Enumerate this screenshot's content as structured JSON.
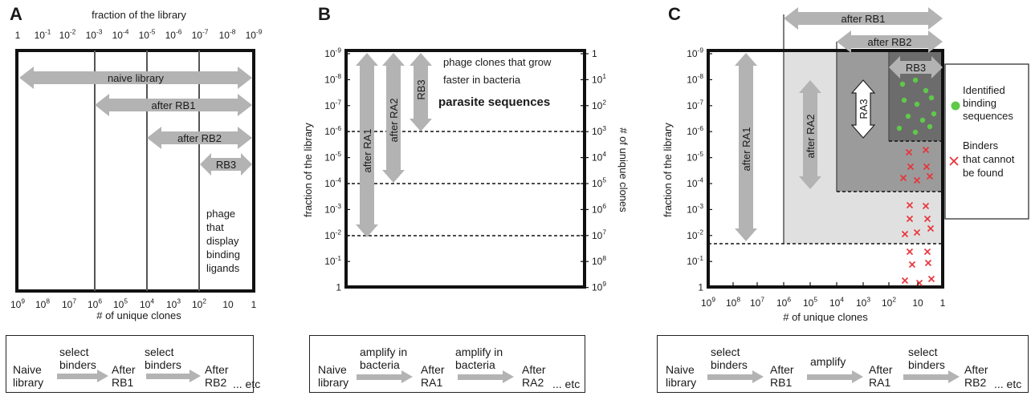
{
  "panel_a": {
    "letter": "A",
    "top_axis_label": "fraction of the library",
    "top_ticks": [
      "1",
      "10",
      "10",
      "10",
      "10",
      "10",
      "10",
      "10",
      "10",
      "10"
    ],
    "top_tick_exps": [
      "",
      "-1",
      "-2",
      "-3",
      "-4",
      "-5",
      "-6",
      "-7",
      "-8",
      "-9"
    ],
    "bottom_axis_label": "# of unique clones",
    "bottom_ticks": [
      "10",
      "10",
      "10",
      "10",
      "10",
      "10",
      "10",
      "10",
      "10",
      "1"
    ],
    "bottom_tick_exps": [
      "9",
      "8",
      "7",
      "6",
      "5",
      "4",
      "3",
      "2",
      "",
      ""
    ],
    "bottom_tick_alt": [
      "",
      "",
      "",
      "",
      "",
      "",
      "",
      "",
      "10",
      ""
    ],
    "arrows": [
      "naive library",
      "after RB1",
      "after RB2",
      "RB3"
    ],
    "note": [
      "phage",
      "that",
      "display",
      "binding",
      "ligands"
    ]
  },
  "panel_b": {
    "letter": "B",
    "left_axis_label": "fraction of the library",
    "right_axis_label": "# of unique clones",
    "left_tick_exps": [
      "-9",
      "-8",
      "-7",
      "-6",
      "-5",
      "-4",
      "-3",
      "-2",
      "-1",
      ""
    ],
    "right_tick_exps": [
      "",
      "1",
      "2",
      "3",
      "4",
      "5",
      "6",
      "7",
      "8",
      "9"
    ],
    "arrows": [
      "after RA1",
      "after RA2",
      "RB3"
    ],
    "note": [
      "phage clones that grow",
      "faster in bacteria"
    ],
    "note_bold": "parasite sequences"
  },
  "panel_c": {
    "letter": "C",
    "left_axis_label": "fraction of the library",
    "bottom_axis_label": "# of unique clones",
    "arrows": [
      "after RB1",
      "after RB2",
      "RB3",
      "RA3",
      "after RA2",
      "after RA1"
    ],
    "legend": {
      "found": [
        "Identified",
        "binding",
        "sequences"
      ],
      "missing": [
        "Binders",
        "that cannot",
        "be found"
      ]
    },
    "colors": {
      "found": "#5fc94a",
      "missing": "#e8333a"
    }
  },
  "flows": {
    "a": [
      "Naive\nlibrary",
      "select\nbinders",
      "After\nRB1",
      "select\nbinders",
      "After\nRB2",
      "... etc"
    ],
    "b": [
      "Naive\nlibrary",
      "amplify in\nbacteria",
      "After\nRA1",
      "amplify in\nbacteria",
      "After\nRA2",
      "... etc"
    ],
    "c": [
      "Naive\nlibrary",
      "select\nbinders",
      "After\nRB1",
      "amplify",
      "After\nRA1",
      "select\nbinders",
      "After\nRB2",
      "... etc"
    ]
  },
  "colors": {
    "arrow": "#b3b3b3",
    "shade_light": "#e0e0e0",
    "shade_mid": "#9b9b9b",
    "shade_dark": "#6c6c6c"
  }
}
